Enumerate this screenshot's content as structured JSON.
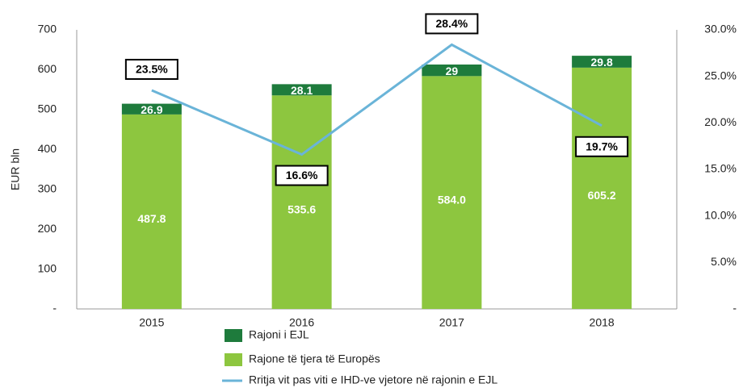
{
  "chart_data": {
    "type": "bar",
    "y_label": "EUR bln",
    "categories": [
      "2015",
      "2016",
      "2017",
      "2018"
    ],
    "series": [
      {
        "name": "Rajone të tjera të Europës",
        "color": "#8dc63f",
        "values": [
          487.8,
          535.6,
          584.0,
          605.2
        ],
        "value_labels": [
          "487.8",
          "535.6",
          "584.0",
          "605.2"
        ]
      },
      {
        "name": "Rajoni i EJL",
        "color": "#1e7b3c",
        "values": [
          26.9,
          28.1,
          29.0,
          29.8
        ]
      },
      {
        "name": "Rritja vit pas viti e IHD-ve vjetore në rajonin e EJL",
        "type": "line",
        "axis": "y2",
        "color": "#6ab4d8",
        "values": [
          23.5,
          16.6,
          28.4,
          19.7
        ],
        "value_labels": [
          "23.5%",
          "16.6%",
          "28.4%",
          "19.7%"
        ]
      }
    ],
    "ylim": [
      0,
      700
    ],
    "yticks": [
      {
        "value": 0,
        "label": "-"
      },
      100,
      200,
      300,
      400,
      500,
      600,
      700
    ],
    "y2lim": [
      0,
      30
    ],
    "y2ticks": [
      {
        "value": 0,
        "label": "-"
      },
      {
        "value": 5,
        "label": "5.0%"
      },
      {
        "value": 10,
        "label": "10.0%"
      },
      {
        "value": 15,
        "label": "15.0%"
      },
      {
        "value": 20,
        "label": "20.0%"
      },
      {
        "value": 25,
        "label": "25.0%"
      },
      {
        "value": 30,
        "label": "30.0%"
      }
    ]
  }
}
